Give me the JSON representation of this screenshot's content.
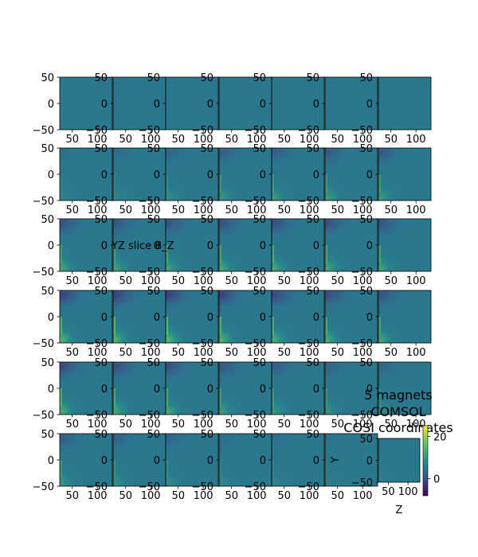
{
  "chart_data": {
    "type": "heatmap",
    "grid": {
      "rows": 6,
      "cols": 7
    },
    "panel_x_ticks": [
      "50",
      "100"
    ],
    "panel_x_tick_values": [
      50,
      100
    ],
    "panel_y_ticks": [
      "50",
      "0",
      "−50"
    ],
    "panel_y_tick_values": [
      50,
      0,
      -50
    ],
    "x_range": [
      25,
      130
    ],
    "y_range": [
      -50,
      50
    ],
    "colormap": "viridis",
    "annotation_text": "YZ slice B_Z",
    "last_panel": {
      "title_lines": [
        "5 magnets",
        "COMSOL",
        "COSI coordinates"
      ],
      "xlabel": "Z",
      "ylabel": "Y",
      "x_ticks": [
        "50",
        "100"
      ],
      "y_ticks": [
        "50",
        "0",
        "−50"
      ]
    },
    "colorbar": {
      "ticks": [
        "20",
        "0"
      ],
      "tick_values": [
        20,
        0
      ],
      "range": [
        -8,
        25
      ]
    },
    "panel_field_strength": [
      [
        0.0,
        0.0,
        0.0,
        0.0,
        0.0,
        0.0,
        0.0
      ],
      [
        0.15,
        0.2,
        0.3,
        0.4,
        0.45,
        0.5,
        0.5
      ],
      [
        0.6,
        0.55,
        0.6,
        0.65,
        0.7,
        0.65,
        0.6
      ],
      [
        0.85,
        0.9,
        0.95,
        0.85,
        0.75,
        0.7,
        0.6
      ],
      [
        0.75,
        0.7,
        0.65,
        0.55,
        0.45,
        0.35,
        0.3
      ],
      [
        0.4,
        0.35,
        0.3,
        0.2,
        0.15,
        0.1,
        0.1
      ]
    ]
  }
}
